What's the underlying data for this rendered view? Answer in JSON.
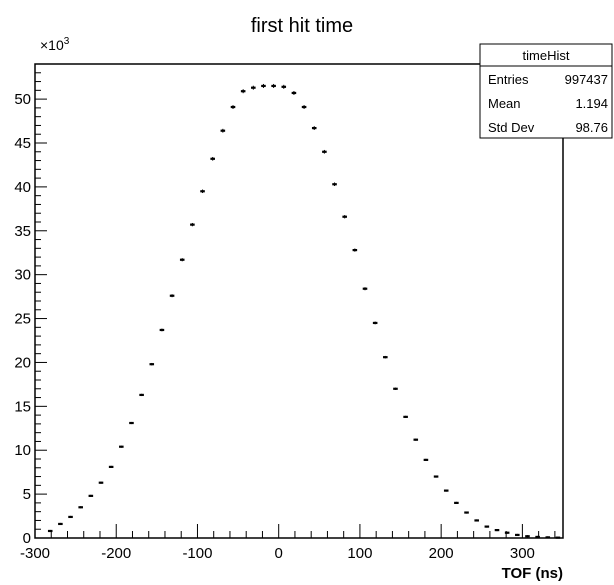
{
  "chart_data": {
    "type": "bar",
    "title": "first hit time",
    "xlabel": "TOF (ns)",
    "ylabel": "",
    "y_multiplier_label": "×10",
    "y_multiplier_exp": "3",
    "xlim": [
      -300,
      350
    ],
    "ylim": [
      0,
      54
    ],
    "x_ticks": [
      "-300",
      "-200",
      "-100",
      "0",
      "100",
      "200",
      "300"
    ],
    "y_ticks": [
      "0",
      "5",
      "10",
      "15",
      "20",
      "25",
      "30",
      "35",
      "40",
      "45",
      "50"
    ],
    "grid": false,
    "legend_position": "top-right",
    "stats_box": {
      "name": "timeHist",
      "rows": [
        {
          "label": "Entries",
          "value": "997437"
        },
        {
          "label": "Mean",
          "value": "1.194"
        },
        {
          "label": "Std Dev",
          "value": "98.76"
        }
      ]
    },
    "bin_width": 12.5,
    "bin_centers": [
      -281.25,
      -268.75,
      -256.25,
      -243.75,
      -231.25,
      -218.75,
      -206.25,
      -193.75,
      -181.25,
      -168.75,
      -156.25,
      -143.75,
      -131.25,
      -118.75,
      -106.25,
      -93.75,
      -81.25,
      -68.75,
      -56.25,
      -43.75,
      -31.25,
      -18.75,
      -6.25,
      6.25,
      18.75,
      31.25,
      43.75,
      56.25,
      68.75,
      81.25,
      93.75,
      106.25,
      118.75,
      131.25,
      143.75,
      156.25,
      168.75,
      181.25,
      193.75,
      206.25,
      218.75,
      231.25,
      243.75,
      256.25,
      268.75,
      281.25,
      293.75,
      306.25,
      318.75,
      331.25,
      343.75
    ],
    "values": [
      0.8,
      1.6,
      2.4,
      3.5,
      4.8,
      6.3,
      8.1,
      10.4,
      13.1,
      16.3,
      19.8,
      23.7,
      27.6,
      31.7,
      35.7,
      39.5,
      43.2,
      46.4,
      49.1,
      50.9,
      51.3,
      51.5,
      51.5,
      51.4,
      50.7,
      49.1,
      46.7,
      44.0,
      40.3,
      36.6,
      32.8,
      28.4,
      24.5,
      20.6,
      17.0,
      13.8,
      11.2,
      8.9,
      7.0,
      5.4,
      4.0,
      2.9,
      2.0,
      1.3,
      0.9,
      0.6,
      0.35,
      0.2,
      0.12,
      0.07,
      0.04
    ]
  }
}
